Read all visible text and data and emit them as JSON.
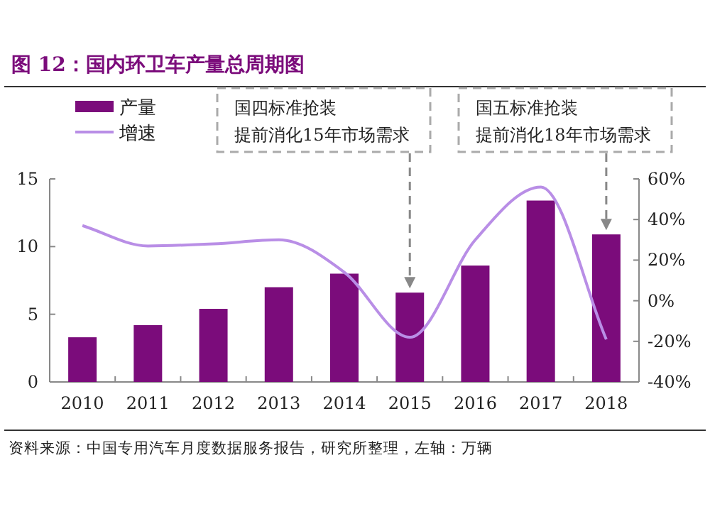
{
  "chart_data": {
    "type": "bar",
    "title": "图 12：国内环卫车产量总周期图",
    "categories": [
      "2010",
      "2011",
      "2012",
      "2013",
      "2014",
      "2015",
      "2016",
      "2017",
      "2018"
    ],
    "series": [
      {
        "name": "产量",
        "color": "#7b0c7b",
        "values": [
          3.3,
          4.2,
          5.4,
          7.0,
          8.0,
          6.6,
          8.6,
          13.4,
          10.9
        ]
      },
      {
        "name": "增速",
        "type": "line",
        "axis": "y2",
        "color": "#b98ee6",
        "values": [
          37,
          27,
          28,
          30,
          14,
          -18,
          30,
          56,
          -19
        ]
      }
    ],
    "ylim": [
      0,
      15
    ],
    "yticks": [
      0,
      5,
      10,
      15
    ],
    "y2lim": [
      -40,
      60
    ],
    "y2ticks": [
      {
        "value": -40,
        "label": "-40%"
      },
      {
        "value": -20,
        "label": "-20%"
      },
      {
        "value": 0,
        "label": "0%"
      },
      {
        "value": 20,
        "label": "20%"
      },
      {
        "value": 40,
        "label": "40%"
      },
      {
        "value": 60,
        "label": "60%"
      }
    ],
    "legend": "top left",
    "grid": false,
    "marker": "none",
    "annotations": [
      "国四标准抢装",
      "提前消化15年市场需求",
      "国五标准抢装",
      "提前消化18年市场需求",
      "资料来源：中国专用汽车月度数据服务报告，研究所整理，左轴：万辆"
    ]
  }
}
